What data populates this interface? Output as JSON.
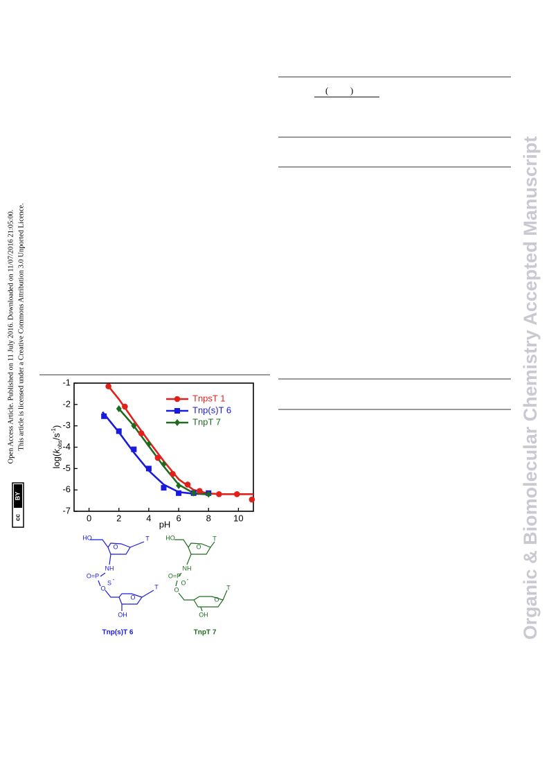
{
  "sidebar": {
    "line1": "Open Access Article. Published on 11 July 2016. Downloaded on 11/07/2016 21:05:00.",
    "line2": "This article is licensed under a Creative Commons Attribution 3.0 Unported Licence.",
    "badge": [
      "cc",
      "BY"
    ]
  },
  "watermark": "Organic & Biomolecular Chemistry Accepted Manuscript",
  "header": {
    "parens": [
      "(",
      ")"
    ]
  },
  "chart_data": {
    "type": "scatter",
    "x_label": "pH",
    "y_label": [
      "log(",
      "k",
      "obs",
      "/s",
      "-1",
      ")"
    ],
    "xlim": [
      -1,
      11
    ],
    "xticks": [
      0,
      2,
      4,
      6,
      8,
      10
    ],
    "ylim": [
      -7,
      -1
    ],
    "yticks": [
      -1,
      -2,
      -3,
      -4,
      -5,
      -6,
      -7
    ],
    "legend": "upper right",
    "series": [
      {
        "name": "TnpsT 1",
        "color": "#e0201b",
        "marker": "circle",
        "x": [
          1.3,
          2.4,
          3.5,
          4.6,
          5.6,
          6.6,
          7.4,
          8.7,
          9.9,
          10.9
        ],
        "values": [
          -1.15,
          -2.1,
          -3.35,
          -4.5,
          -5.25,
          -5.75,
          -6.05,
          -6.2,
          -6.2,
          -6.45
        ],
        "fit_x": [
          1.3,
          2,
          3,
          4,
          5,
          6,
          7,
          8,
          9,
          11
        ],
        "fit_values": [
          -1.15,
          -1.75,
          -2.75,
          -3.72,
          -4.65,
          -5.5,
          -6.0,
          -6.17,
          -6.2,
          -6.2
        ]
      },
      {
        "name": "Tnp(s)T 6",
        "color": "#1a1adc",
        "marker": "square",
        "x": [
          1,
          2,
          3,
          4,
          5,
          6,
          7,
          8
        ],
        "values": [
          -2.55,
          -3.25,
          -4.1,
          -5.0,
          -5.9,
          -6.15,
          -6.15,
          -6.15
        ],
        "fit_x": [
          0.9,
          2,
          3,
          4,
          5,
          6,
          7,
          8
        ],
        "fit_values": [
          -2.35,
          -3.3,
          -4.25,
          -5.1,
          -5.75,
          -6.1,
          -6.18,
          -6.2
        ]
      },
      {
        "name": "TnpT 7",
        "color": "#1e6b1e",
        "marker": "diamond",
        "x": [
          2,
          3,
          4,
          5,
          6,
          7,
          8
        ],
        "values": [
          -2.2,
          -3.0,
          -3.85,
          -4.8,
          -5.8,
          -6.15,
          -6.2
        ],
        "fit_x": [
          2,
          3,
          4,
          5,
          6,
          7,
          8
        ],
        "fit_values": [
          -2.2,
          -3.0,
          -3.95,
          -4.9,
          -5.75,
          -6.15,
          -6.22
        ]
      }
    ]
  },
  "structures": [
    {
      "caption": "Tnp(s)T 6",
      "color": "#1a1adc",
      "labels": [
        "HO",
        "T",
        "O",
        "NH",
        "O=P",
        "S",
        "-",
        "O",
        "T",
        "O",
        "OH"
      ]
    },
    {
      "caption": "TnpT 7",
      "color": "#1e6b1e",
      "labels": [
        "HO",
        "T",
        "O",
        "NH",
        "O=P",
        "O",
        "-",
        "O",
        "T",
        "O",
        "OH"
      ]
    }
  ]
}
